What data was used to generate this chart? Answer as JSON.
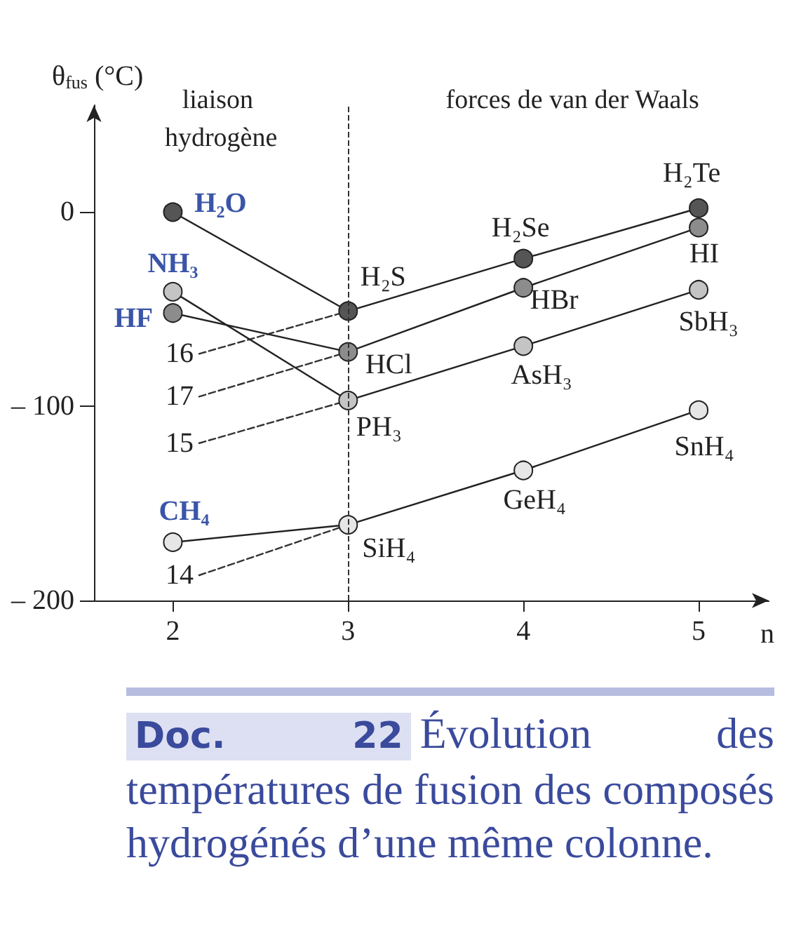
{
  "chart_data": {
    "type": "line",
    "title": "Doc. 22",
    "subtitle": "Évolution des températures de fusion des composés hydrogénés d’une même colonne.",
    "xlabel": "n",
    "ylabel": "θ$_{fus}$ (°C)",
    "xlim": [
      1.55,
      5.4
    ],
    "xticks": [
      2,
      3,
      4,
      5
    ],
    "ylim": [
      -200,
      55
    ],
    "yticks": [
      0,
      {
        "value": -100,
        "label": "– 100"
      },
      {
        "value": -200,
        "label": "– 200"
      }
    ],
    "grid": false,
    "legend": false,
    "series": [
      {
        "color": "#555555",
        "x": [
          2,
          3,
          4,
          5
        ],
        "values": [
          0,
          -51,
          -24,
          2
        ],
        "marker": "circle",
        "line_style": "solid"
      },
      {
        "color": "#8c8c8c",
        "x": [
          2,
          3,
          4,
          5
        ],
        "values": [
          -52,
          -72,
          -39,
          -8
        ],
        "marker": "circle",
        "line_style": "solid"
      },
      {
        "color": "#c4c4c4",
        "x": [
          2,
          3,
          4,
          5
        ],
        "values": [
          -41,
          -97,
          -69,
          -40
        ],
        "marker": "circle",
        "line_style": "solid"
      },
      {
        "color": "#e6e6e6",
        "x": [
          2,
          3,
          4,
          5
        ],
        "values": [
          -170,
          -161,
          -133,
          -102
        ],
        "marker": "circle",
        "line_style": "solid"
      },
      {
        "name": "16",
        "color": "#333333",
        "x": [
          2.15,
          3
        ],
        "values": [
          -73,
          -51
        ],
        "marker": "none",
        "line_style": "dashed"
      },
      {
        "name": "17",
        "color": "#333333",
        "x": [
          2.15,
          3
        ],
        "values": [
          -95,
          -72
        ],
        "marker": "none",
        "line_style": "dashed"
      },
      {
        "name": "15",
        "color": "#333333",
        "x": [
          2.15,
          3
        ],
        "values": [
          -119,
          -97
        ],
        "marker": "none",
        "line_style": "dashed"
      },
      {
        "name": "14",
        "color": "#333333",
        "x": [
          2.15,
          3
        ],
        "values": [
          -187,
          -161
        ],
        "marker": "none",
        "line_style": "dashed"
      }
    ],
    "ref_lines": [
      {
        "axis": "x",
        "value": 3,
        "line_style": "dashed",
        "color": "#333333"
      }
    ],
    "annotations": [
      "liaison hydrogène",
      "forces de van der Waals",
      {
        "text": "H₂O",
        "x": 2,
        "y": 0
      },
      {
        "text": "NH₃",
        "x": 2,
        "y": -41
      },
      {
        "text": "HF",
        "x": 2,
        "y": -52
      },
      {
        "text": "CH₄",
        "x": 2,
        "y": -170
      },
      {
        "text": "H₂S",
        "x": 3,
        "y": -51
      },
      {
        "text": "HCl",
        "x": 3,
        "y": -72
      },
      {
        "text": "PH₃",
        "x": 3,
        "y": -97
      },
      {
        "text": "SiH₄",
        "x": 3,
        "y": -161
      },
      {
        "text": "H₂Se",
        "x": 4,
        "y": -24
      },
      {
        "text": "HBr",
        "x": 4,
        "y": -39
      },
      {
        "text": "AsH₃",
        "x": 4,
        "y": -69
      },
      {
        "text": "GeH₄",
        "x": 4,
        "y": -133
      },
      {
        "text": "H₂Te",
        "x": 5,
        "y": 2
      },
      {
        "text": "HI",
        "x": 5,
        "y": -8
      },
      {
        "text": "SbH₃",
        "x": 5,
        "y": -40
      },
      {
        "text": "SnH₄",
        "x": 5,
        "y": -102
      }
    ]
  }
}
